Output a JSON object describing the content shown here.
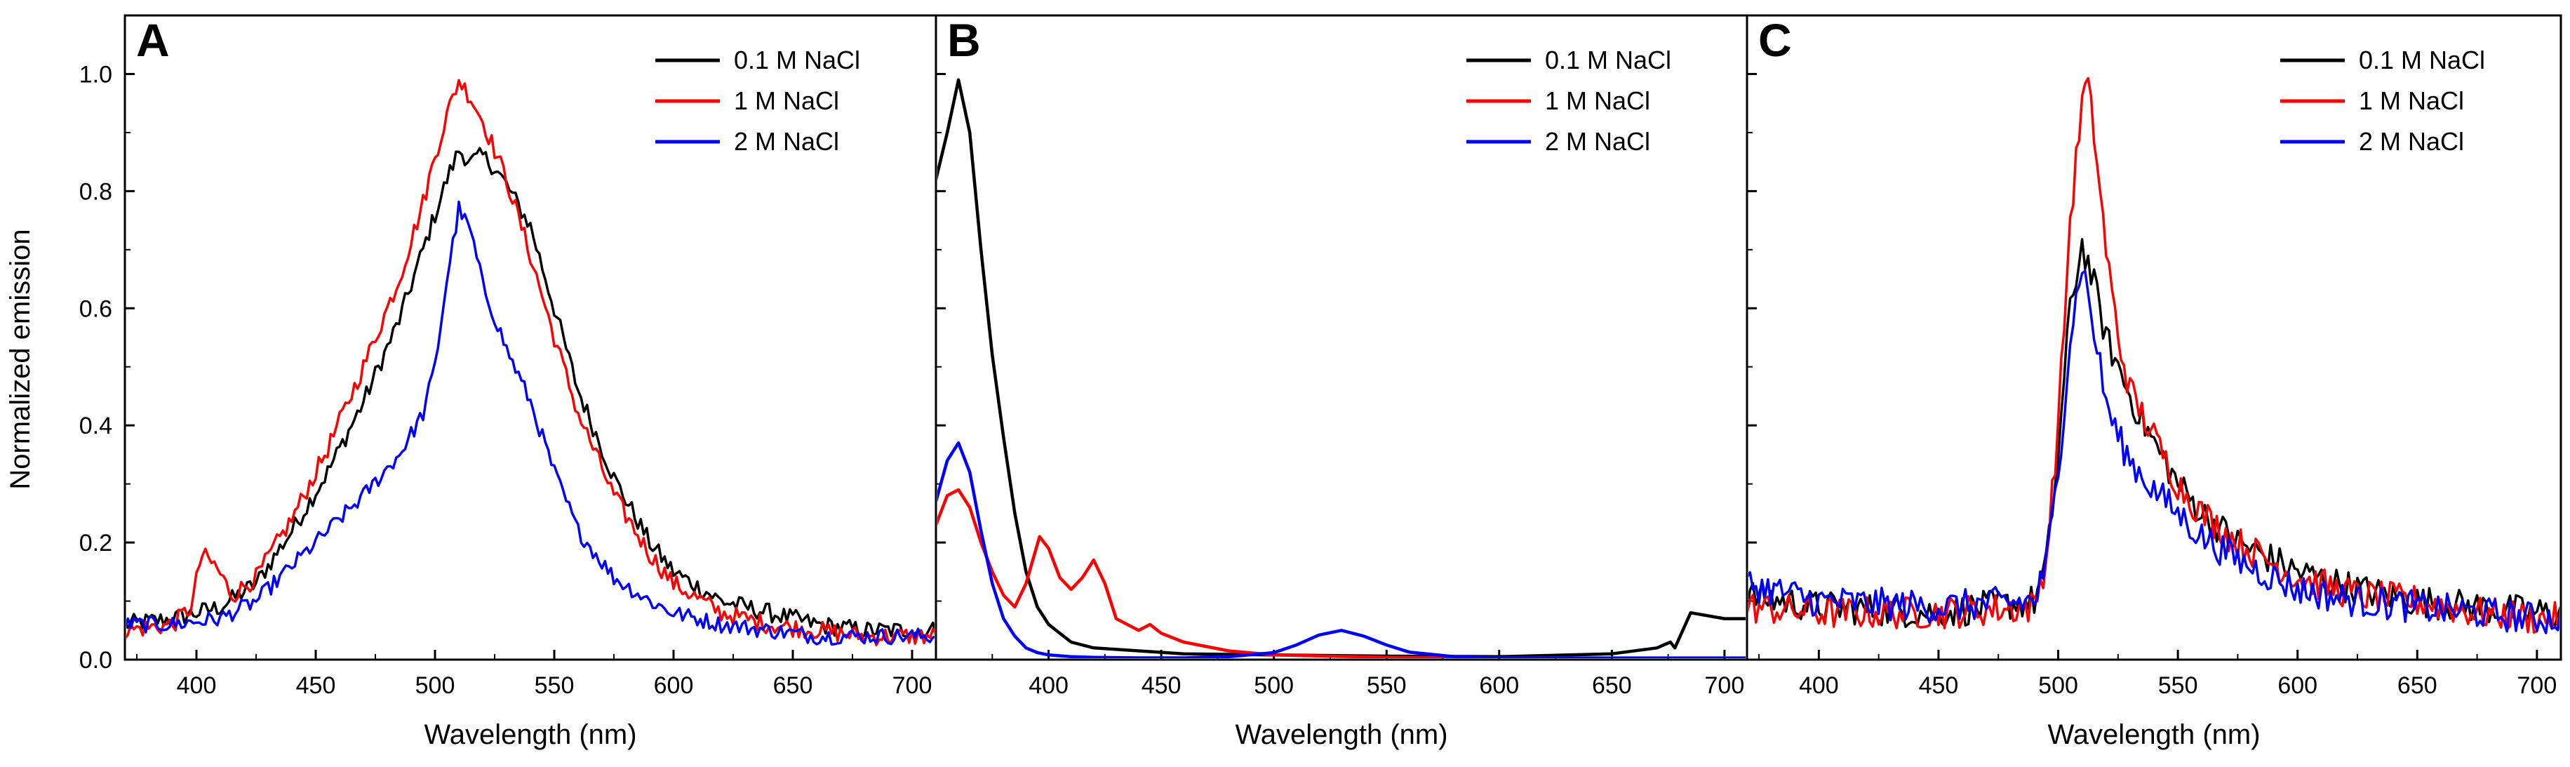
{
  "colors": {
    "black": "#000000",
    "red": "#ff0000",
    "blue": "#0000ff"
  },
  "shared": {
    "ylabel": "Normalized emission",
    "yticks": [
      "0.0",
      "0.2",
      "0.4",
      "0.6",
      "0.8",
      "1.0"
    ]
  },
  "chart_data": [
    {
      "type": "line",
      "panel_label": "A",
      "xlabel": "Wavelength (nm)",
      "ylabel": "Normalized emission",
      "xlim": [
        370,
        710
      ],
      "ylim": [
        0,
        1.1
      ],
      "xticks": [
        "400",
        "450",
        "500",
        "550",
        "600",
        "650",
        "700"
      ],
      "legend_position": "top-right",
      "series": [
        {
          "name": "0.1 M NaCl",
          "color": "#000000",
          "noise": 0.016,
          "x": [
            370,
            390,
            410,
            425,
            440,
            455,
            470,
            485,
            495,
            500,
            505,
            510,
            515,
            520,
            525,
            530,
            540,
            550,
            560,
            575,
            590,
            600,
            620,
            640,
            660,
            680,
            700,
            710
          ],
          "y": [
            0.06,
            0.07,
            0.09,
            0.13,
            0.22,
            0.32,
            0.44,
            0.58,
            0.7,
            0.76,
            0.82,
            0.87,
            0.85,
            0.86,
            0.84,
            0.81,
            0.74,
            0.6,
            0.46,
            0.31,
            0.2,
            0.15,
            0.1,
            0.08,
            0.06,
            0.05,
            0.05,
            0.05
          ]
        },
        {
          "name": "1 M NaCl",
          "color": "#ff0000",
          "noise": 0.016,
          "x": [
            370,
            390,
            398,
            402,
            408,
            415,
            425,
            440,
            455,
            470,
            485,
            495,
            500,
            505,
            510,
            515,
            520,
            530,
            540,
            550,
            560,
            575,
            590,
            600,
            620,
            640,
            660,
            680,
            700,
            710
          ],
          "y": [
            0.05,
            0.06,
            0.09,
            0.18,
            0.16,
            0.11,
            0.14,
            0.24,
            0.36,
            0.5,
            0.65,
            0.78,
            0.86,
            0.93,
            0.99,
            0.96,
            0.92,
            0.82,
            0.69,
            0.55,
            0.42,
            0.28,
            0.18,
            0.13,
            0.08,
            0.06,
            0.05,
            0.04,
            0.04,
            0.04
          ]
        },
        {
          "name": "2 M NaCl",
          "color": "#0000ff",
          "noise": 0.014,
          "x": [
            370,
            390,
            410,
            425,
            440,
            455,
            470,
            485,
            495,
            500,
            505,
            510,
            515,
            520,
            530,
            540,
            550,
            560,
            575,
            590,
            600,
            620,
            640,
            660,
            680,
            700,
            710
          ],
          "y": [
            0.06,
            0.06,
            0.07,
            0.1,
            0.16,
            0.22,
            0.28,
            0.35,
            0.42,
            0.5,
            0.65,
            0.77,
            0.73,
            0.64,
            0.53,
            0.44,
            0.32,
            0.22,
            0.14,
            0.1,
            0.08,
            0.06,
            0.05,
            0.04,
            0.04,
            0.04,
            0.04
          ]
        }
      ]
    },
    {
      "type": "line",
      "panel_label": "B",
      "xlabel": "Wavelength (nm)",
      "ylabel": "Normalized emission",
      "xlim": [
        350,
        710
      ],
      "ylim": [
        0,
        1.1
      ],
      "xticks": [
        "400",
        "450",
        "500",
        "550",
        "600",
        "650",
        "700"
      ],
      "legend_position": "top-right",
      "series": [
        {
          "name": "0.1 M NaCl",
          "color": "#000000",
          "noise": 0.0,
          "x": [
            350,
            355,
            360,
            365,
            370,
            375,
            380,
            385,
            390,
            395,
            400,
            410,
            420,
            440,
            460,
            500,
            550,
            600,
            650,
            670,
            676,
            678,
            685,
            700,
            710
          ],
          "y": [
            0.82,
            0.9,
            0.99,
            0.9,
            0.7,
            0.52,
            0.38,
            0.25,
            0.15,
            0.09,
            0.06,
            0.03,
            0.02,
            0.015,
            0.01,
            0.008,
            0.006,
            0.005,
            0.01,
            0.02,
            0.03,
            0.02,
            0.08,
            0.07,
            0.07
          ]
        },
        {
          "name": "1 M NaCl",
          "color": "#ff0000",
          "noise": 0.0,
          "x": [
            350,
            355,
            360,
            365,
            370,
            375,
            380,
            385,
            390,
            396,
            400,
            405,
            410,
            415,
            420,
            425,
            430,
            440,
            445,
            450,
            460,
            480,
            500,
            550,
            600,
            650,
            700,
            710
          ],
          "y": [
            0.23,
            0.28,
            0.29,
            0.26,
            0.2,
            0.15,
            0.11,
            0.09,
            0.13,
            0.21,
            0.19,
            0.14,
            0.12,
            0.14,
            0.17,
            0.13,
            0.07,
            0.05,
            0.06,
            0.045,
            0.03,
            0.015,
            0.008,
            0.004,
            0.003,
            0.003,
            0.003,
            0.003
          ]
        },
        {
          "name": "2 M NaCl",
          "color": "#0000ff",
          "noise": 0.0,
          "x": [
            350,
            355,
            360,
            365,
            370,
            375,
            380,
            385,
            390,
            395,
            400,
            410,
            420,
            440,
            460,
            480,
            500,
            510,
            520,
            530,
            540,
            550,
            560,
            580,
            600,
            650,
            700,
            710
          ],
          "y": [
            0.27,
            0.34,
            0.37,
            0.32,
            0.22,
            0.13,
            0.07,
            0.04,
            0.02,
            0.012,
            0.008,
            0.005,
            0.004,
            0.003,
            0.003,
            0.005,
            0.012,
            0.025,
            0.042,
            0.05,
            0.04,
            0.025,
            0.013,
            0.005,
            0.003,
            0.002,
            0.002,
            0.002
          ]
        }
      ]
    },
    {
      "type": "line",
      "panel_label": "C",
      "xlabel": "Wavelength (nm)",
      "ylabel": "Normalized emission",
      "xlim": [
        370,
        710
      ],
      "ylim": [
        0,
        1.1
      ],
      "xticks": [
        "400",
        "450",
        "500",
        "550",
        "600",
        "650",
        "700"
      ],
      "legend_position": "top-right",
      "series": [
        {
          "name": "0.1 M NaCl",
          "color": "#000000",
          "noise": 0.028,
          "x": [
            370,
            400,
            450,
            490,
            495,
            500,
            505,
            510,
            515,
            520,
            525,
            530,
            540,
            550,
            560,
            575,
            600,
            625,
            650,
            675,
            700,
            710
          ],
          "y": [
            0.11,
            0.09,
            0.08,
            0.1,
            0.16,
            0.35,
            0.6,
            0.71,
            0.64,
            0.55,
            0.5,
            0.45,
            0.37,
            0.3,
            0.25,
            0.2,
            0.15,
            0.12,
            0.1,
            0.09,
            0.08,
            0.08
          ]
        },
        {
          "name": "1 M NaCl",
          "color": "#ff0000",
          "noise": 0.028,
          "x": [
            370,
            400,
            450,
            490,
            495,
            500,
            505,
            510,
            512,
            515,
            520,
            525,
            530,
            540,
            550,
            560,
            575,
            600,
            625,
            650,
            675,
            700,
            710
          ],
          "y": [
            0.09,
            0.08,
            0.08,
            0.09,
            0.17,
            0.4,
            0.75,
            0.95,
            0.99,
            0.9,
            0.7,
            0.55,
            0.46,
            0.38,
            0.3,
            0.25,
            0.2,
            0.14,
            0.11,
            0.1,
            0.08,
            0.07,
            0.07
          ]
        },
        {
          "name": "2 M NaCl",
          "color": "#0000ff",
          "noise": 0.028,
          "x": [
            370,
            400,
            450,
            490,
            495,
            500,
            505,
            510,
            515,
            520,
            525,
            530,
            540,
            550,
            560,
            575,
            600,
            625,
            650,
            675,
            700,
            710
          ],
          "y": [
            0.13,
            0.1,
            0.09,
            0.1,
            0.16,
            0.32,
            0.55,
            0.68,
            0.56,
            0.44,
            0.38,
            0.34,
            0.29,
            0.25,
            0.21,
            0.17,
            0.12,
            0.1,
            0.09,
            0.08,
            0.07,
            0.07
          ]
        }
      ]
    }
  ]
}
